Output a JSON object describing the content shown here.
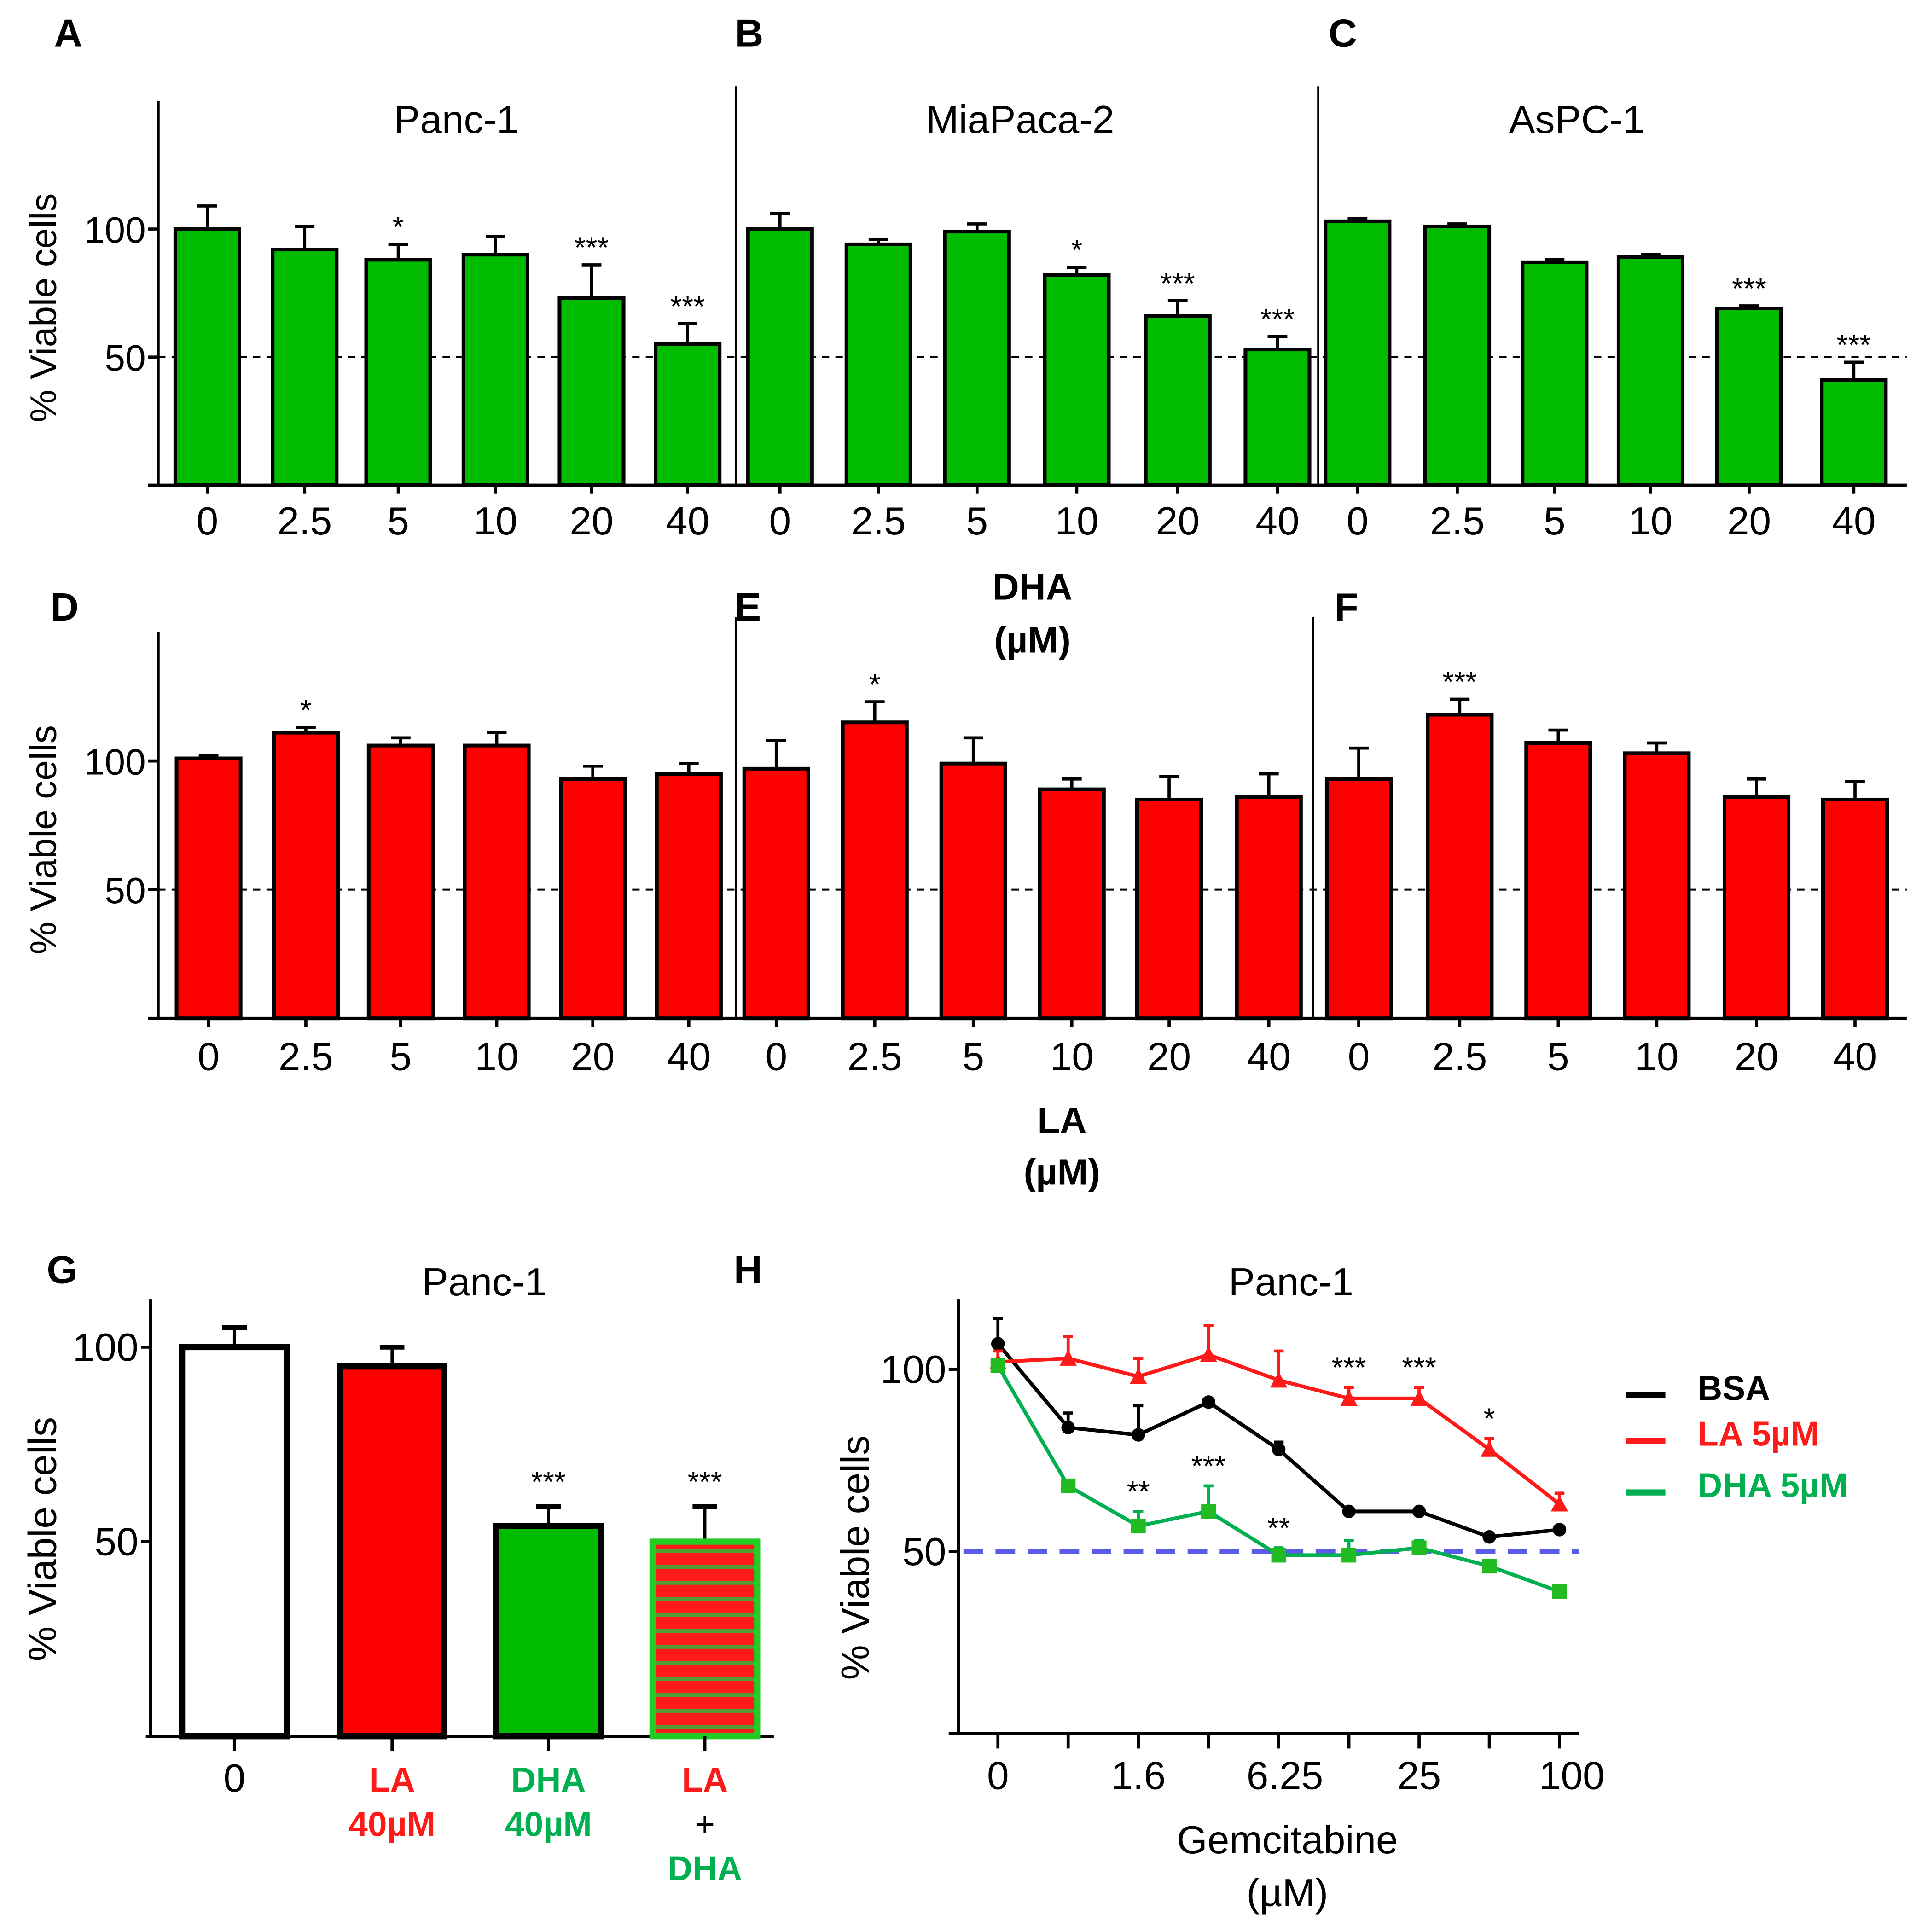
{
  "colors": {
    "green": "#00bb00",
    "red": "#ff0000",
    "label_green": "#00b050",
    "label_red": "#ff1a1a",
    "ref_blue": "#5b5bea",
    "black": "#000000"
  },
  "chart_data": [
    {
      "type": "bar",
      "letter": "A",
      "title": "Panc-1",
      "ylabel": "% Viable cells",
      "yticks": [
        "100",
        "50"
      ],
      "ylim": [
        0,
        150
      ],
      "ref_line": 50,
      "categories": [
        "0",
        "2.5",
        "5",
        "10",
        "20",
        "40"
      ],
      "values": [
        100,
        92,
        88,
        90,
        73,
        55
      ],
      "errors": [
        9,
        9,
        6,
        7,
        13,
        8
      ],
      "sig": [
        "",
        "",
        "*",
        "",
        "***",
        "***"
      ]
    },
    {
      "type": "bar",
      "letter": "B",
      "title": "MiaPaca-2",
      "categories": [
        "0",
        "2.5",
        "5",
        "10",
        "20",
        "40"
      ],
      "values": [
        100,
        94,
        99,
        82,
        66,
        53
      ],
      "errors": [
        6,
        2,
        3,
        3,
        6,
        5
      ],
      "sig": [
        "",
        "",
        "",
        "*",
        "***",
        "***"
      ]
    },
    {
      "type": "bar",
      "letter": "C",
      "title": "AsPC-1",
      "categories": [
        "0",
        "2.5",
        "5",
        "10",
        "20",
        "40"
      ],
      "values": [
        103,
        101,
        87,
        89,
        69,
        41
      ],
      "errors": [
        1,
        1,
        1,
        1,
        1,
        7
      ],
      "sig": [
        "",
        "",
        "",
        "",
        "***",
        "***"
      ]
    },
    {
      "type": "bar",
      "letter": "D",
      "title": "",
      "ylabel": "% Viable cells",
      "yticks": [
        "100",
        "50"
      ],
      "ylim": [
        0,
        150
      ],
      "ref_line": 50,
      "categories": [
        "0",
        "2.5",
        "5",
        "10",
        "20",
        "40"
      ],
      "values": [
        101,
        111,
        106,
        106,
        93,
        95
      ],
      "errors": [
        1,
        2,
        3,
        5,
        5,
        4
      ],
      "sig": [
        "",
        "*",
        "",
        "",
        "",
        ""
      ]
    },
    {
      "type": "bar",
      "letter": "E",
      "title": "",
      "categories": [
        "0",
        "2.5",
        "5",
        "10",
        "20",
        "40"
      ],
      "values": [
        97,
        115,
        99,
        89,
        85,
        86
      ],
      "errors": [
        11,
        8,
        10,
        4,
        9,
        9
      ],
      "sig": [
        "",
        "*",
        "",
        "",
        "",
        ""
      ]
    },
    {
      "type": "bar",
      "letter": "F",
      "title": "",
      "categories": [
        "0",
        "2.5",
        "5",
        "10",
        "20",
        "40"
      ],
      "values": [
        93,
        118,
        107,
        103,
        86,
        85
      ],
      "errors": [
        12,
        6,
        5,
        4,
        7,
        7
      ],
      "sig": [
        "",
        "***",
        "",
        "",
        "",
        ""
      ]
    },
    {
      "type": "bar",
      "letter": "G",
      "title": "Panc-1",
      "ylabel": "% Viable cells",
      "yticks": [
        "100",
        "50"
      ],
      "ylim": [
        0,
        100
      ],
      "categories": [
        [
          "0"
        ],
        [
          "LA",
          "40µM"
        ],
        [
          "DHA",
          "40µM"
        ],
        [
          "LA",
          "+",
          "DHA"
        ]
      ],
      "values": [
        100,
        95,
        54,
        50
      ],
      "errors": [
        5,
        5,
        5,
        9
      ],
      "sig": [
        "",
        "",
        "***",
        "***"
      ],
      "fills": [
        "white",
        "red",
        "green",
        "striped"
      ]
    },
    {
      "type": "line",
      "letter": "H",
      "title": "Panc-1",
      "ylabel": "% Viable cells",
      "xlabel": "Gemcitabine",
      "xunit": "(µM)",
      "yticks": [
        "100",
        "50"
      ],
      "ylim": [
        0,
        100
      ],
      "ref_line": 50,
      "x_tick_labels": [
        "0",
        "",
        "1.6",
        "",
        "6.25",
        "",
        "25",
        "",
        "100"
      ],
      "series": [
        {
          "name": "BSA",
          "color": "#000000",
          "marker": "circle",
          "values": [
            107,
            84,
            82,
            91,
            78,
            61,
            61,
            54,
            56
          ],
          "errors": [
            7,
            4,
            8,
            0,
            2,
            0,
            0,
            0,
            0
          ],
          "sig": [
            "",
            "",
            "",
            "",
            "",
            "",
            "",
            "",
            ""
          ]
        },
        {
          "name": "LA 5µM",
          "color": "#ff1a1a",
          "marker": "triangle",
          "values": [
            102,
            103,
            98,
            104,
            97,
            92,
            92,
            78,
            63
          ],
          "errors": [
            3,
            6,
            5,
            8,
            8,
            3,
            3,
            3,
            3
          ],
          "sig": [
            "",
            "",
            "",
            "",
            "",
            "***",
            "***",
            "*",
            ""
          ]
        },
        {
          "name": "DHA 5µM",
          "color": "#00b050",
          "marker": "square",
          "values": [
            101,
            68,
            57,
            61,
            49,
            49,
            51,
            46,
            39
          ],
          "errors": [
            0,
            0,
            4,
            7,
            2,
            4,
            2,
            1,
            1
          ],
          "sig": [
            "",
            "",
            "**",
            "***",
            "**",
            "",
            "",
            "",
            ""
          ]
        }
      ]
    }
  ],
  "group_labels": {
    "dha": [
      "DHA",
      "(µM)"
    ],
    "la": [
      "LA",
      "(µM)"
    ]
  }
}
